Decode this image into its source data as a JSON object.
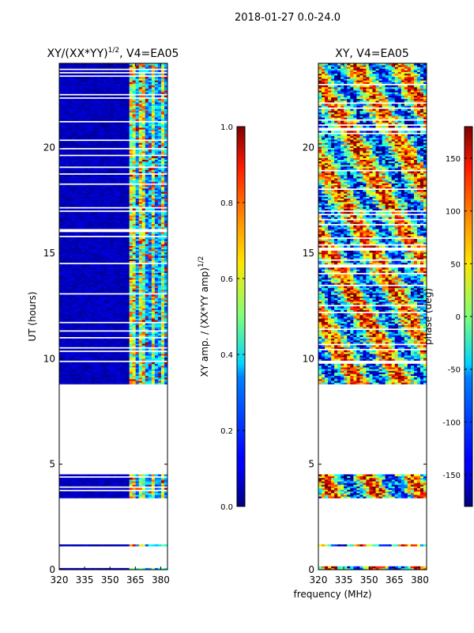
{
  "figure": {
    "suptitle": "2018-01-27 0.0-24.0",
    "xlabel_shared": "frequency (MHz)"
  },
  "chart_data": [
    {
      "type": "heatmap",
      "title": "XY/(XX*YY)",
      "title_exponent": "1/2",
      "title_suffix": ", V4=EA05",
      "xlabel": "",
      "ylabel": "UT (hours)",
      "xlim": [
        320,
        384
      ],
      "ylim": [
        0,
        24
      ],
      "xticks": [
        320,
        335,
        350,
        365,
        380
      ],
      "yticks": [
        0,
        5,
        10,
        15,
        20
      ],
      "data_hours": [
        [
          0.0,
          0.12
        ],
        [
          1.12,
          1.18
        ],
        [
          3.4,
          4.5
        ],
        [
          8.8,
          24.0
        ]
      ],
      "active_band_mhz": [
        361,
        383
      ],
      "colorbar": {
        "label": "XY amp. / (XX*YY amp)",
        "label_exponent": "1/2",
        "range": [
          0.0,
          1.0
        ],
        "ticks": [
          "0.0",
          "0.2",
          "0.4",
          "0.6",
          "0.8",
          "1.0"
        ]
      }
    },
    {
      "type": "heatmap",
      "title": "XY, V4=EA05",
      "xlabel": "frequency (MHz)",
      "ylabel": "",
      "xlim": [
        320,
        384
      ],
      "ylim": [
        0,
        24
      ],
      "xticks": [
        320,
        335,
        350,
        365,
        380
      ],
      "yticks": [
        0,
        5,
        10,
        15,
        20
      ],
      "data_hours": [
        [
          0.0,
          0.12
        ],
        [
          1.12,
          1.18
        ],
        [
          3.4,
          4.5
        ],
        [
          8.8,
          24.0
        ]
      ],
      "colorbar": {
        "label": "phase (deg)",
        "range": [
          -180,
          180
        ],
        "ticks": [
          -150,
          -100,
          -50,
          0,
          50,
          100,
          150
        ]
      }
    }
  ]
}
